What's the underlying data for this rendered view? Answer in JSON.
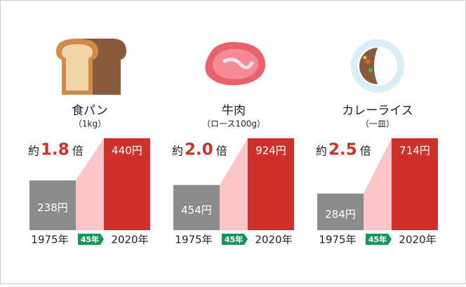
{
  "chart_data": [
    {
      "type": "bar",
      "title": "食パン",
      "subtitle": "（1kg）",
      "multiplier": {
        "prefix": "約",
        "label": "1.8",
        "suffix": "倍"
      },
      "categories": [
        "1975年",
        "2020年"
      ],
      "values": [
        238,
        440
      ],
      "value_labels": [
        "238円",
        "440円"
      ],
      "gap_label": "45年",
      "colors": [
        "#8c8c8c",
        "#d0302c"
      ],
      "connector_color": "#fbc4c6",
      "badge_color": "#17985a",
      "ylim": [
        0,
        440
      ]
    },
    {
      "type": "bar",
      "title": "牛肉",
      "subtitle": "（ロース100g）",
      "multiplier": {
        "prefix": "約",
        "label": "2.0",
        "suffix": "倍"
      },
      "categories": [
        "1975年",
        "2020年"
      ],
      "values": [
        454,
        924
      ],
      "value_labels": [
        "454円",
        "924円"
      ],
      "gap_label": "45年",
      "colors": [
        "#8c8c8c",
        "#d0302c"
      ],
      "connector_color": "#fbc4c6",
      "badge_color": "#17985a",
      "ylim": [
        0,
        924
      ]
    },
    {
      "type": "bar",
      "title": "カレーライス",
      "subtitle": "（一皿）",
      "multiplier": {
        "prefix": "約",
        "label": "2.5",
        "suffix": "倍"
      },
      "categories": [
        "1975年",
        "2020年"
      ],
      "values": [
        284,
        714
      ],
      "value_labels": [
        "284円",
        "714円"
      ],
      "gap_label": "45年",
      "colors": [
        "#8c8c8c",
        "#d0302c"
      ],
      "connector_color": "#fbc4c6",
      "badge_color": "#17985a",
      "ylim": [
        0,
        714
      ]
    }
  ]
}
